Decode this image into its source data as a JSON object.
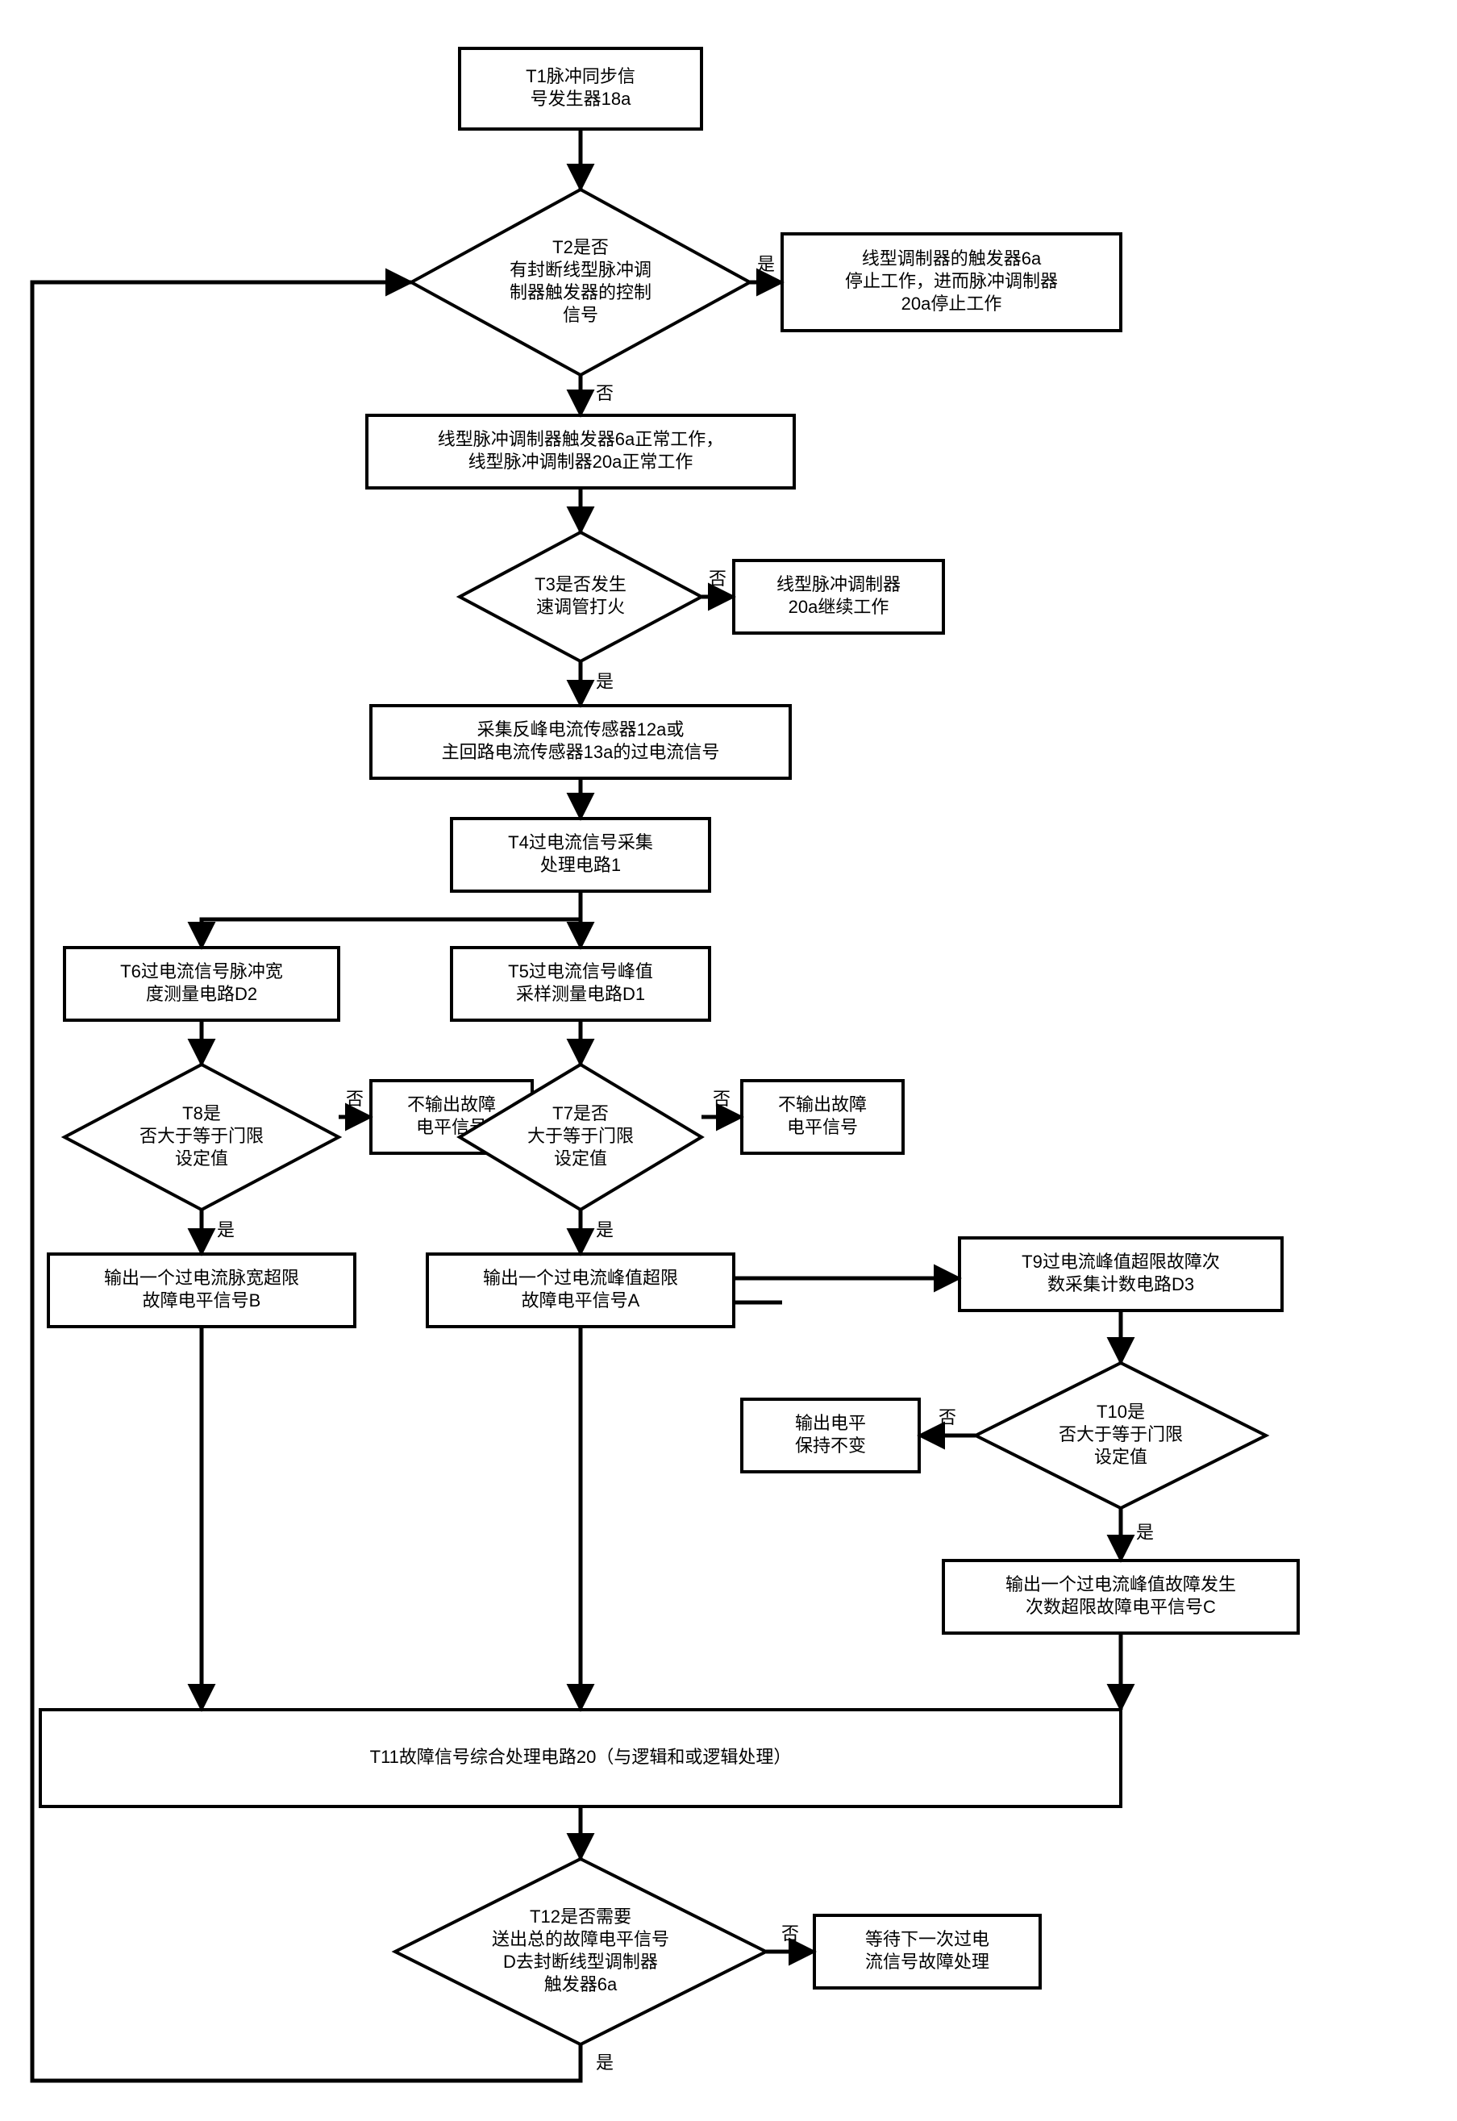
{
  "type": "flowchart",
  "colors": {
    "background": "#ffffff",
    "stroke": "#000000",
    "fill": "#ffffff",
    "text": "#000000"
  },
  "stroke_width_box": 4,
  "stroke_width_arrow": 5,
  "font_size_node": 22,
  "font_size_label": 22,
  "nodes": {
    "T1": {
      "lines": [
        "T1脉冲同步信",
        "号发生器18a"
      ]
    },
    "T2": {
      "lines": [
        "T2是否",
        "有封断线型脉冲调",
        "制器触发器的控制",
        "信号"
      ]
    },
    "T2yes": {
      "lines": [
        "线型调制器的触发器6a",
        "停止工作，进而脉冲调制器",
        "20a停止工作"
      ]
    },
    "T2no": {
      "lines": [
        "线型脉冲调制器触发器6a正常工作，",
        "线型脉冲调制器20a正常工作"
      ]
    },
    "T3": {
      "lines": [
        "T3是否发生",
        "速调管打火"
      ]
    },
    "T3no": {
      "lines": [
        "线型脉冲调制器",
        "20a继续工作"
      ]
    },
    "T3yes": {
      "lines": [
        "采集反峰电流传感器12a或",
        "主回路电流传感器13a的过电流信号"
      ]
    },
    "T4": {
      "lines": [
        "T4过电流信号采集",
        "处理电路1"
      ]
    },
    "T5": {
      "lines": [
        "T5过电流信号峰值",
        "采样测量电路D1"
      ]
    },
    "T6": {
      "lines": [
        "T6过电流信号脉冲宽",
        "度测量电路D2"
      ]
    },
    "T7": {
      "lines": [
        "T7是否",
        "大于等于门限",
        "设定值"
      ]
    },
    "T7no": {
      "lines": [
        "不输出故障",
        "电平信号"
      ]
    },
    "T7yes": {
      "lines": [
        "输出一个过电流峰值超限",
        "故障电平信号A"
      ]
    },
    "T8": {
      "lines": [
        "T8是",
        "否大于等于门限",
        "设定值"
      ]
    },
    "T8no": {
      "lines": [
        "不输出故障",
        "电平信号"
      ]
    },
    "T8yes": {
      "lines": [
        "输出一个过电流脉宽超限",
        "故障电平信号B"
      ]
    },
    "T9": {
      "lines": [
        "T9过电流峰值超限故障次",
        "数采集计数电路D3"
      ]
    },
    "T10": {
      "lines": [
        "T10是",
        "否大于等于门限",
        "设定值"
      ]
    },
    "T10no": {
      "lines": [
        "输出电平",
        "保持不变"
      ]
    },
    "T10yes": {
      "lines": [
        "输出一个过电流峰值故障发生",
        "次数超限故障电平信号C"
      ]
    },
    "T11": {
      "lines": [
        "T11故障信号综合处理电路20（与逻辑和或逻辑处理）"
      ]
    },
    "T12": {
      "lines": [
        "T12是否需要",
        "送出总的故障电平信号",
        "D去封断线型调制器",
        "触发器6a"
      ]
    },
    "T12no": {
      "lines": [
        "等待下一次过电",
        "流信号故障处理"
      ]
    }
  },
  "labels": {
    "yes": "是",
    "no": "否"
  }
}
